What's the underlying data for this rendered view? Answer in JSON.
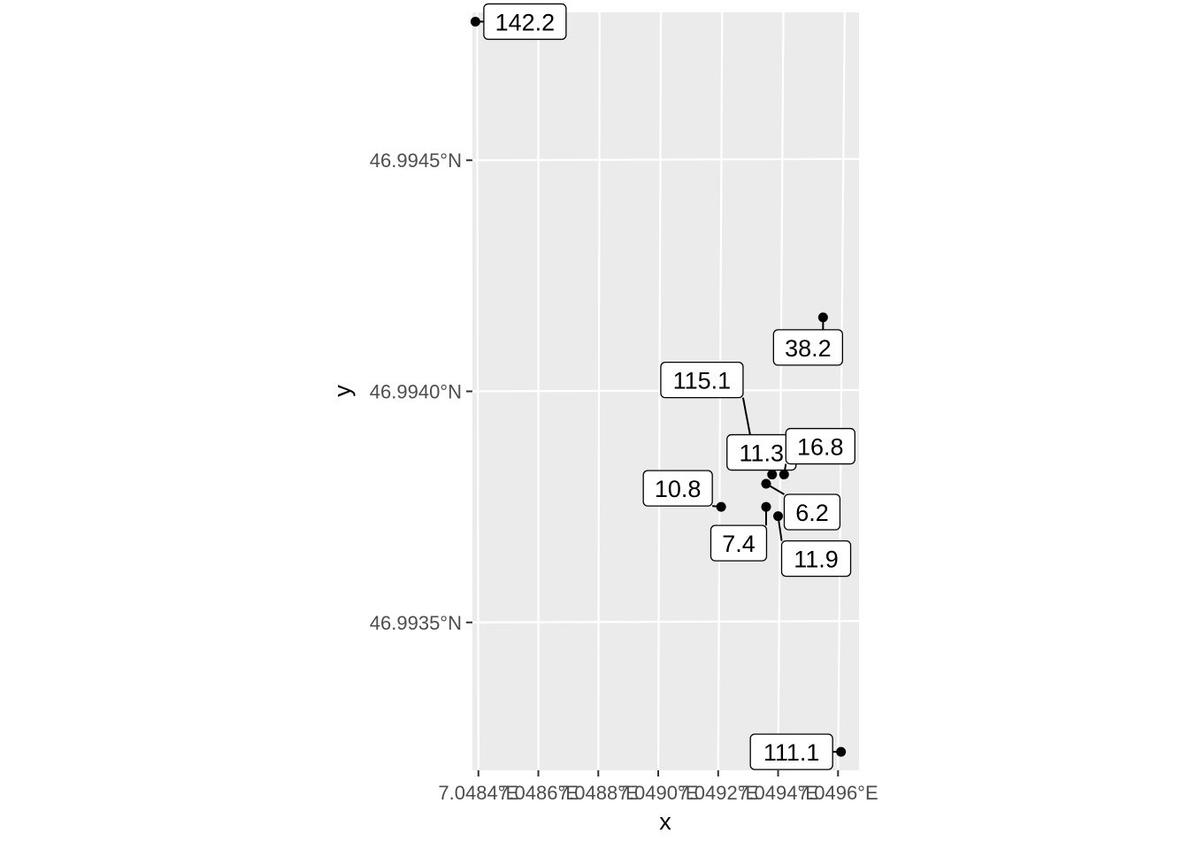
{
  "chart_data": {
    "type": "scatter",
    "title": "",
    "xlabel": "x",
    "ylabel": "y",
    "grid": true,
    "xlim": [
      7.04838,
      7.04967
    ],
    "ylim": [
      46.99318,
      46.99482
    ],
    "x_ticks": [
      {
        "value": 7.0484,
        "label": "7.0484°E"
      },
      {
        "value": 7.0486,
        "label": "7.0486°E"
      },
      {
        "value": 7.0488,
        "label": "7.0488°E"
      },
      {
        "value": 7.049,
        "label": "7.0490°E"
      },
      {
        "value": 7.0492,
        "label": "7.0492°E"
      },
      {
        "value": 7.0494,
        "label": "7.0494°E"
      },
      {
        "value": 7.0496,
        "label": "7.0496°E"
      }
    ],
    "y_ticks": [
      {
        "value": 46.9935,
        "label": "46.9935°N"
      },
      {
        "value": 46.994,
        "label": "46.9940°N"
      },
      {
        "value": 46.9945,
        "label": "46.9945°N"
      }
    ],
    "points": [
      {
        "x": 7.04839,
        "y": 46.9948,
        "label": "142.2"
      },
      {
        "x": 7.04955,
        "y": 46.99416,
        "label": "38.2"
      },
      {
        "x": 7.04932,
        "y": 46.99386,
        "label": "115.1"
      },
      {
        "x": 7.04938,
        "y": 46.99382,
        "label": "11.3"
      },
      {
        "x": 7.04942,
        "y": 46.99382,
        "label": "16.8"
      },
      {
        "x": 7.04936,
        "y": 46.9938,
        "label": "6.2"
      },
      {
        "x": 7.04921,
        "y": 46.99375,
        "label": "10.8"
      },
      {
        "x": 7.04936,
        "y": 46.99375,
        "label": "7.4"
      },
      {
        "x": 7.0494,
        "y": 46.99373,
        "label": "11.9"
      },
      {
        "x": 7.04961,
        "y": 46.99322,
        "label": "111.1"
      }
    ]
  }
}
